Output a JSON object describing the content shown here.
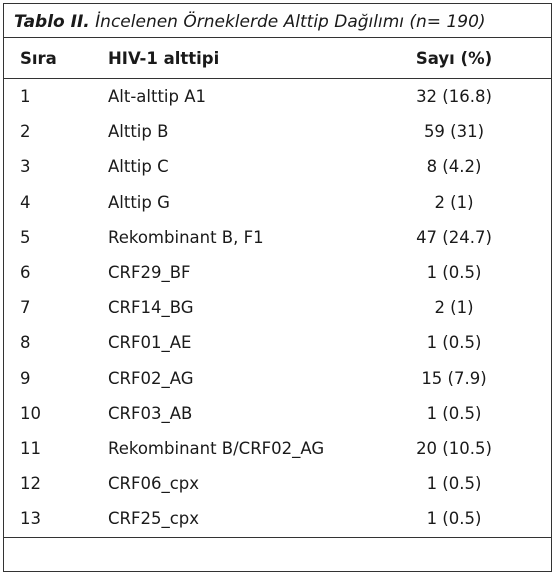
{
  "caption": {
    "label": "Tablo II.",
    "text": " İncelenen Örneklerde Alttip Dağılımı (n= 190)"
  },
  "table": {
    "header": [
      "Sıra",
      "HIV-1 alttipi",
      "Sayı (%)"
    ],
    "rows": [
      [
        "1",
        "Alt-alttip A1",
        "32 (16.8)"
      ],
      [
        "2",
        "Alttip B",
        "59 (31)"
      ],
      [
        "3",
        "Alttip C",
        "8 (4.2)"
      ],
      [
        "4",
        "Alttip G",
        "2 (1)"
      ],
      [
        "5",
        "Rekombinant B, F1",
        "47 (24.7)"
      ],
      [
        "6",
        "CRF29_BF",
        "1 (0.5)"
      ],
      [
        "7",
        "CRF14_BG",
        "2 (1)"
      ],
      [
        "8",
        "CRF01_AE",
        "1 (0.5)"
      ],
      [
        "9",
        "CRF02_AG",
        "15 (7.9)"
      ],
      [
        "10",
        "CRF03_AB",
        "1 (0.5)"
      ],
      [
        "11",
        "Rekombinant B/CRF02_AG",
        "20 (10.5)"
      ],
      [
        "12",
        "CRF06_cpx",
        "1 (0.5)"
      ],
      [
        "13",
        "CRF25_cpx",
        "1 (0.5)"
      ]
    ]
  }
}
